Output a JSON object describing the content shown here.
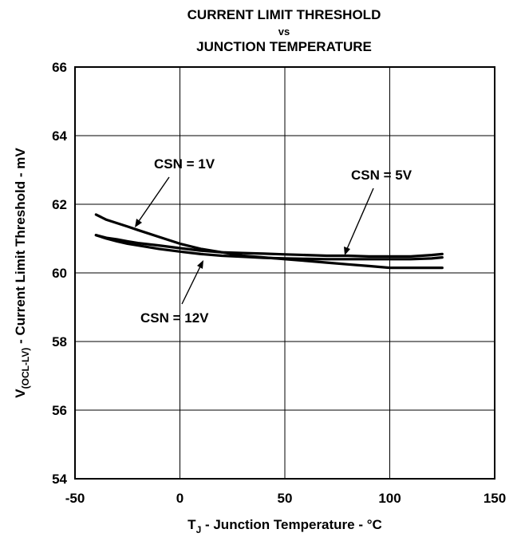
{
  "chart_data": {
    "type": "line",
    "title_lines": [
      "CURRENT LIMIT THRESHOLD",
      "vs",
      "JUNCTION TEMPERATURE"
    ],
    "xlabel": {
      "main": "T",
      "sub": "J",
      "rest": " - Junction Temperature  - °C"
    },
    "ylabel": {
      "main": "V",
      "sub": "(OCL-LV)",
      "rest": " - Current Limit Threshold - mV"
    },
    "xlim": [
      -50,
      150
    ],
    "ylim": [
      54,
      66
    ],
    "xticks": [
      "-50",
      "0",
      "50",
      "100",
      "150"
    ],
    "yticks": [
      "54",
      "56",
      "58",
      "60",
      "62",
      "64",
      "66"
    ],
    "xtick_values": [
      -50,
      0,
      50,
      100,
      150
    ],
    "ytick_values": [
      54,
      56,
      58,
      60,
      62,
      64,
      66
    ],
    "grid": true,
    "series": [
      {
        "name": "CSN = 1V",
        "x": [
          -40,
          -35,
          -30,
          -25,
          -20,
          -10,
          0,
          10,
          20,
          30,
          40,
          50,
          60,
          70,
          80,
          90,
          100,
          110,
          120,
          125
        ],
        "y": [
          61.7,
          61.55,
          61.45,
          61.35,
          61.25,
          61.05,
          60.85,
          60.7,
          60.6,
          60.5,
          60.45,
          60.4,
          60.35,
          60.3,
          60.25,
          60.2,
          60.15,
          60.15,
          60.15,
          60.15
        ]
      },
      {
        "name": "CSN = 5V",
        "x": [
          -40,
          -35,
          -30,
          -25,
          -20,
          -10,
          0,
          10,
          20,
          30,
          40,
          50,
          60,
          70,
          80,
          90,
          100,
          110,
          120,
          125
        ],
        "y": [
          61.1,
          61.02,
          60.98,
          60.92,
          60.87,
          60.8,
          60.72,
          60.65,
          60.6,
          60.58,
          60.56,
          60.54,
          60.52,
          60.5,
          60.5,
          60.48,
          60.48,
          60.48,
          60.52,
          60.55
        ]
      },
      {
        "name": "CSN = 12V",
        "x": [
          -40,
          -35,
          -30,
          -25,
          -20,
          -10,
          0,
          10,
          20,
          30,
          40,
          50,
          60,
          70,
          80,
          90,
          100,
          110,
          120,
          125
        ],
        "y": [
          61.1,
          61.0,
          60.92,
          60.85,
          60.8,
          60.7,
          60.62,
          60.55,
          60.5,
          60.47,
          60.44,
          60.42,
          60.41,
          60.4,
          60.4,
          60.4,
          60.4,
          60.4,
          60.42,
          60.45
        ]
      }
    ],
    "annotations": [
      {
        "text": "CSN = 1V",
        "points_to": [
          -22,
          61.25
        ]
      },
      {
        "text": "CSN = 5V",
        "points_to": [
          78,
          60.5
        ]
      },
      {
        "text": "CSN = 12V",
        "points_to": [
          10,
          60.65
        ]
      }
    ]
  }
}
